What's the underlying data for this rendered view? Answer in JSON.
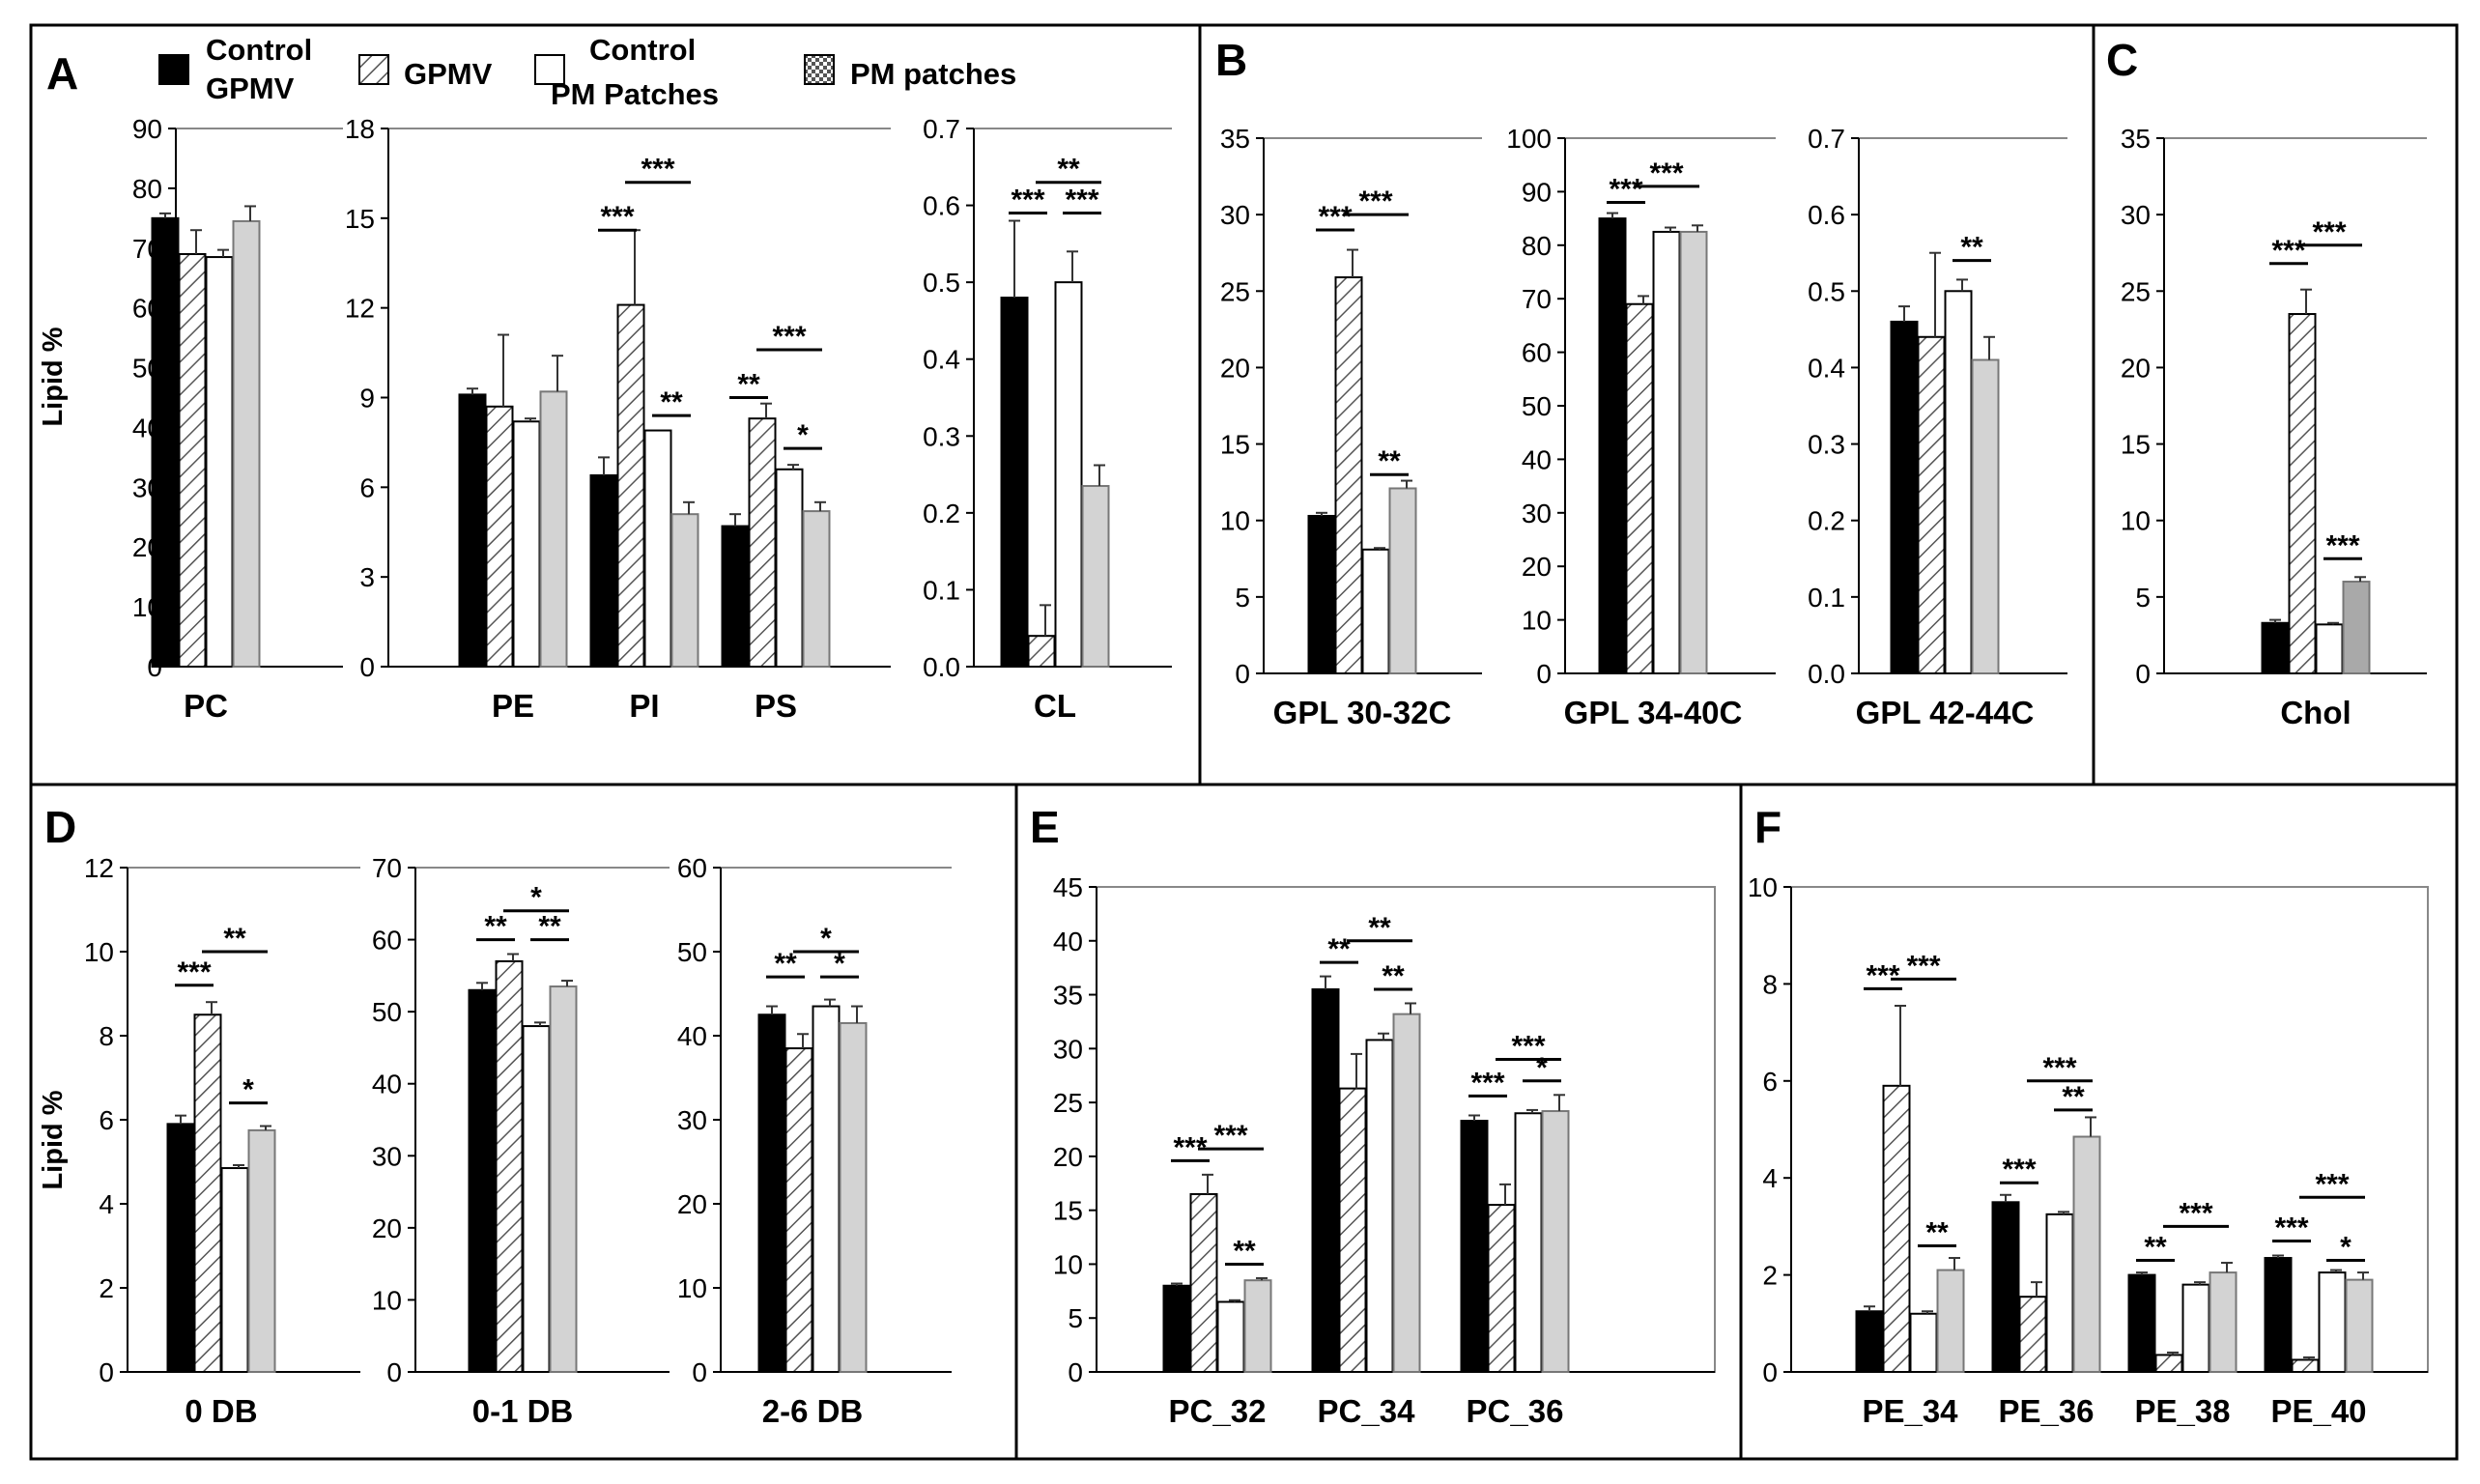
{
  "legend": {
    "control_gpmv": [
      "Control",
      "GPMV"
    ],
    "gpmv": "GPMV",
    "control_pm": [
      "Control",
      "PM Patches"
    ],
    "pm_patches": "PM patches"
  },
  "series_names": [
    "Control GPMV",
    "GPMV",
    "Control PM Patches",
    "PM patches"
  ],
  "panels": [
    {
      "label": "A"
    },
    {
      "label": "B"
    },
    {
      "label": "C"
    },
    {
      "label": "D"
    },
    {
      "label": "E"
    },
    {
      "label": "F"
    }
  ],
  "ylabel": "Lipid %",
  "chart_data": [
    {
      "type": "bar",
      "panel": "A",
      "title": "",
      "ylabel": "Lipid %",
      "ylim": [
        0,
        90
      ],
      "yticks": [
        0,
        10,
        20,
        30,
        40,
        50,
        60,
        70,
        80,
        90
      ],
      "categories": [
        "PC"
      ],
      "series": [
        {
          "name": "Control GPMV",
          "values": [
            75.0
          ],
          "errors": [
            0.8
          ]
        },
        {
          "name": "GPMV",
          "values": [
            69.0
          ],
          "errors": [
            4.0
          ]
        },
        {
          "name": "Control PM Patches",
          "values": [
            68.5
          ],
          "errors": [
            1.2
          ]
        },
        {
          "name": "PM patches",
          "values": [
            74.5
          ],
          "errors": [
            2.5
          ]
        }
      ],
      "annotations": []
    },
    {
      "type": "bar",
      "panel": "A",
      "ylim": [
        0,
        18
      ],
      "yticks": [
        0,
        3,
        6,
        9,
        12,
        15,
        18
      ],
      "categories": [
        "PE",
        "PI",
        "PS"
      ],
      "series": [
        {
          "name": "Control GPMV",
          "values": [
            9.1,
            6.4,
            4.7
          ],
          "errors": [
            0.2,
            0.6,
            0.4
          ]
        },
        {
          "name": "GPMV",
          "values": [
            8.7,
            12.1,
            8.3
          ],
          "errors": [
            2.4,
            2.5,
            0.5
          ]
        },
        {
          "name": "Control PM Patches",
          "values": [
            8.2,
            7.9,
            6.6
          ],
          "errors": [
            0.1,
            0,
            0.15
          ]
        },
        {
          "name": "PM patches",
          "values": [
            9.2,
            5.1,
            5.2
          ],
          "errors": [
            1.2,
            0.4,
            0.3
          ]
        }
      ],
      "annotations": [
        {
          "cat": 1,
          "from": 0,
          "to": 1,
          "text": "***",
          "level": 14.6
        },
        {
          "cat": 1,
          "from": 1,
          "to": 3,
          "text": "***",
          "level": 16.2
        },
        {
          "cat": 1,
          "from": 2,
          "to": 3,
          "text": "**",
          "level": 8.4
        },
        {
          "cat": 2,
          "from": 0,
          "to": 1,
          "text": "**",
          "level": 9.0
        },
        {
          "cat": 2,
          "from": 1,
          "to": 3,
          "text": "***",
          "level": 10.6
        },
        {
          "cat": 2,
          "from": 2,
          "to": 3,
          "text": "*",
          "level": 7.3
        }
      ]
    },
    {
      "type": "bar",
      "panel": "A",
      "ylim": [
        0,
        0.7
      ],
      "yticks": [
        0.0,
        0.1,
        0.2,
        0.3,
        0.4,
        0.5,
        0.6,
        0.7
      ],
      "categories": [
        "CL"
      ],
      "series": [
        {
          "name": "Control GPMV",
          "values": [
            0.48
          ],
          "errors": [
            0.1
          ]
        },
        {
          "name": "GPMV",
          "values": [
            0.04
          ],
          "errors": [
            0.04
          ]
        },
        {
          "name": "Control PM Patches",
          "values": [
            0.5
          ],
          "errors": [
            0.04
          ]
        },
        {
          "name": "PM patches",
          "values": [
            0.235
          ],
          "errors": [
            0.027
          ]
        }
      ],
      "annotations": [
        {
          "cat": 0,
          "from": 0,
          "to": 1,
          "text": "***",
          "level": 0.59
        },
        {
          "cat": 0,
          "from": 1,
          "to": 3,
          "text": "**",
          "level": 0.63
        },
        {
          "cat": 0,
          "from": 2,
          "to": 3,
          "text": "***",
          "level": 0.59
        }
      ]
    },
    {
      "type": "bar",
      "panel": "B",
      "ylim": [
        0,
        35
      ],
      "yticks": [
        0,
        5,
        10,
        15,
        20,
        25,
        30,
        35
      ],
      "categories": [
        "GPL 30-32C"
      ],
      "series": [
        {
          "name": "Control GPMV",
          "values": [
            10.3
          ],
          "errors": [
            0.2
          ]
        },
        {
          "name": "GPMV",
          "values": [
            25.9
          ],
          "errors": [
            1.8
          ]
        },
        {
          "name": "Control PM Patches",
          "values": [
            8.1
          ],
          "errors": [
            0.1
          ]
        },
        {
          "name": "PM patches",
          "values": [
            12.1
          ],
          "errors": [
            0.5
          ]
        }
      ],
      "annotations": [
        {
          "cat": 0,
          "from": 0,
          "to": 1,
          "text": "***",
          "level": 29.0
        },
        {
          "cat": 0,
          "from": 1,
          "to": 3,
          "text": "***",
          "level": 30.0
        },
        {
          "cat": 0,
          "from": 2,
          "to": 3,
          "text": "**",
          "level": 13.0
        }
      ]
    },
    {
      "type": "bar",
      "panel": "B",
      "ylim": [
        0,
        100
      ],
      "yticks": [
        0,
        10,
        20,
        30,
        40,
        50,
        60,
        70,
        80,
        90,
        100
      ],
      "categories": [
        "GPL 34-40C"
      ],
      "series": [
        {
          "name": "Control GPMV",
          "values": [
            85.0
          ],
          "errors": [
            1.0
          ]
        },
        {
          "name": "GPMV",
          "values": [
            69.0
          ],
          "errors": [
            1.5
          ]
        },
        {
          "name": "Control PM Patches",
          "values": [
            82.5
          ],
          "errors": [
            0.8
          ]
        },
        {
          "name": "PM patches",
          "values": [
            82.5
          ],
          "errors": [
            1.2
          ]
        }
      ],
      "annotations": [
        {
          "cat": 0,
          "from": 0,
          "to": 1,
          "text": "***",
          "level": 88.0
        },
        {
          "cat": 0,
          "from": 1,
          "to": 3,
          "text": "***",
          "level": 91.0
        }
      ]
    },
    {
      "type": "bar",
      "panel": "B",
      "ylim": [
        0,
        0.7
      ],
      "yticks": [
        0.0,
        0.1,
        0.2,
        0.3,
        0.4,
        0.5,
        0.6,
        0.7
      ],
      "categories": [
        "GPL 42-44C"
      ],
      "series": [
        {
          "name": "Control GPMV",
          "values": [
            0.46
          ],
          "errors": [
            0.02
          ]
        },
        {
          "name": "GPMV",
          "values": [
            0.44
          ],
          "errors": [
            0.11
          ]
        },
        {
          "name": "Control PM Patches",
          "values": [
            0.5
          ],
          "errors": [
            0.015
          ]
        },
        {
          "name": "PM patches",
          "values": [
            0.41
          ],
          "errors": [
            0.03
          ]
        }
      ],
      "annotations": [
        {
          "cat": 0,
          "from": 2,
          "to": 3,
          "text": "**",
          "level": 0.54
        }
      ]
    },
    {
      "type": "bar",
      "panel": "C",
      "ylim": [
        0,
        35
      ],
      "yticks": [
        0,
        5,
        10,
        15,
        20,
        25,
        30,
        35
      ],
      "categories": [
        "Chol"
      ],
      "series": [
        {
          "name": "Control GPMV",
          "values": [
            3.3
          ],
          "errors": [
            0.2
          ]
        },
        {
          "name": "GPMV",
          "values": [
            23.5
          ],
          "errors": [
            1.6
          ]
        },
        {
          "name": "Control PM Patches",
          "values": [
            3.2
          ],
          "errors": [
            0.1
          ]
        },
        {
          "name": "PM patches",
          "values": [
            6.0
          ],
          "errors": [
            0.3
          ]
        }
      ],
      "annotations": [
        {
          "cat": 0,
          "from": 0,
          "to": 1,
          "text": "***",
          "level": 26.8
        },
        {
          "cat": 0,
          "from": 1,
          "to": 3,
          "text": "***",
          "level": 28.0
        },
        {
          "cat": 0,
          "from": 2,
          "to": 3,
          "text": "***",
          "level": 7.5
        }
      ]
    },
    {
      "type": "bar",
      "panel": "D",
      "ylabel": "Lipid %",
      "ylim": [
        0,
        12
      ],
      "yticks": [
        0,
        2,
        4,
        6,
        8,
        10,
        12
      ],
      "categories": [
        "0 DB"
      ],
      "series": [
        {
          "name": "Control GPMV",
          "values": [
            5.9
          ],
          "errors": [
            0.2
          ]
        },
        {
          "name": "GPMV",
          "values": [
            8.5
          ],
          "errors": [
            0.3
          ]
        },
        {
          "name": "Control PM Patches",
          "values": [
            4.85
          ],
          "errors": [
            0.07
          ]
        },
        {
          "name": "PM patches",
          "values": [
            5.75
          ],
          "errors": [
            0.1
          ]
        }
      ],
      "annotations": [
        {
          "cat": 0,
          "from": 0,
          "to": 1,
          "text": "***",
          "level": 9.2
        },
        {
          "cat": 0,
          "from": 1,
          "to": 3,
          "text": "**",
          "level": 10.0
        },
        {
          "cat": 0,
          "from": 2,
          "to": 3,
          "text": "*",
          "level": 6.4
        }
      ]
    },
    {
      "type": "bar",
      "panel": "D",
      "ylim": [
        0,
        70
      ],
      "yticks": [
        0,
        10,
        20,
        30,
        40,
        50,
        60,
        70
      ],
      "categories": [
        "0-1 DB"
      ],
      "series": [
        {
          "name": "Control GPMV",
          "values": [
            53.0
          ],
          "errors": [
            1.0
          ]
        },
        {
          "name": "GPMV",
          "values": [
            57.0
          ],
          "errors": [
            1.0
          ]
        },
        {
          "name": "Control PM Patches",
          "values": [
            48.0
          ],
          "errors": [
            0.5
          ]
        },
        {
          "name": "PM patches",
          "values": [
            53.5
          ],
          "errors": [
            0.8
          ]
        }
      ],
      "annotations": [
        {
          "cat": 0,
          "from": 0,
          "to": 1,
          "text": "**",
          "level": 60.0
        },
        {
          "cat": 0,
          "from": 1,
          "to": 3,
          "text": "*",
          "level": 64.0
        },
        {
          "cat": 0,
          "from": 2,
          "to": 3,
          "text": "**",
          "level": 60.0
        }
      ]
    },
    {
      "type": "bar",
      "panel": "D",
      "ylim": [
        0,
        60
      ],
      "yticks": [
        0,
        10,
        20,
        30,
        40,
        50,
        60
      ],
      "categories": [
        "2-6 DB"
      ],
      "series": [
        {
          "name": "Control GPMV",
          "values": [
            42.5
          ],
          "errors": [
            1.0
          ]
        },
        {
          "name": "GPMV",
          "values": [
            38.5
          ],
          "errors": [
            1.7
          ]
        },
        {
          "name": "Control PM Patches",
          "values": [
            43.5
          ],
          "errors": [
            0.8
          ]
        },
        {
          "name": "PM patches",
          "values": [
            41.5
          ],
          "errors": [
            2.0
          ]
        }
      ],
      "annotations": [
        {
          "cat": 0,
          "from": 0,
          "to": 1,
          "text": "**",
          "level": 47.0
        },
        {
          "cat": 0,
          "from": 1,
          "to": 3,
          "text": "*",
          "level": 50.0
        },
        {
          "cat": 0,
          "from": 2,
          "to": 3,
          "text": "*",
          "level": 47.0
        }
      ]
    },
    {
      "type": "bar",
      "panel": "E",
      "ylim": [
        0,
        45
      ],
      "yticks": [
        0,
        5,
        10,
        15,
        20,
        25,
        30,
        35,
        40,
        45
      ],
      "categories": [
        "PC_32",
        "PC_34",
        "PC_36"
      ],
      "series": [
        {
          "name": "Control GPMV",
          "values": [
            8.0,
            35.5,
            23.3
          ],
          "errors": [
            0.2,
            1.2,
            0.5
          ]
        },
        {
          "name": "GPMV",
          "values": [
            16.5,
            26.3,
            15.5
          ],
          "errors": [
            1.8,
            3.2,
            1.9
          ]
        },
        {
          "name": "Control PM Patches",
          "values": [
            6.5,
            30.8,
            24.0
          ],
          "errors": [
            0.15,
            0.6,
            0.3
          ]
        },
        {
          "name": "PM patches",
          "values": [
            8.5,
            33.2,
            24.2
          ],
          "errors": [
            0.2,
            1.0,
            1.5
          ]
        }
      ],
      "annotations": [
        {
          "cat": 0,
          "from": 0,
          "to": 1,
          "text": "***",
          "level": 19.6
        },
        {
          "cat": 0,
          "from": 1,
          "to": 3,
          "text": "***",
          "level": 20.7
        },
        {
          "cat": 0,
          "from": 2,
          "to": 3,
          "text": "**",
          "level": 10.0
        },
        {
          "cat": 1,
          "from": 0,
          "to": 1,
          "text": "**",
          "level": 38.0
        },
        {
          "cat": 1,
          "from": 1,
          "to": 3,
          "text": "**",
          "level": 40.0
        },
        {
          "cat": 1,
          "from": 2,
          "to": 3,
          "text": "**",
          "level": 35.5
        },
        {
          "cat": 2,
          "from": 0,
          "to": 1,
          "text": "***",
          "level": 25.6
        },
        {
          "cat": 2,
          "from": 1,
          "to": 3,
          "text": "***",
          "level": 29.0
        },
        {
          "cat": 2,
          "from": 2,
          "to": 3,
          "text": "*",
          "level": 27.0
        }
      ]
    },
    {
      "type": "bar",
      "panel": "F",
      "ylim": [
        0,
        10
      ],
      "yticks": [
        0,
        2,
        4,
        6,
        8,
        10
      ],
      "categories": [
        "PE_34",
        "PE_36",
        "PE_38",
        "PE_40"
      ],
      "series": [
        {
          "name": "Control GPMV",
          "values": [
            1.25,
            3.5,
            2.0,
            2.35
          ],
          "errors": [
            0.1,
            0.15,
            0.05,
            0.05
          ]
        },
        {
          "name": "GPMV",
          "values": [
            5.9,
            1.55,
            0.35,
            0.25
          ],
          "errors": [
            1.65,
            0.3,
            0.05,
            0.05
          ]
        },
        {
          "name": "Control PM Patches",
          "values": [
            1.2,
            3.25,
            1.8,
            2.05
          ],
          "errors": [
            0.05,
            0.05,
            0.05,
            0.05
          ]
        },
        {
          "name": "PM patches",
          "values": [
            2.1,
            4.85,
            2.05,
            1.9
          ],
          "errors": [
            0.25,
            0.4,
            0.2,
            0.15
          ]
        }
      ],
      "annotations": [
        {
          "cat": 0,
          "from": 0,
          "to": 1,
          "text": "***",
          "level": 7.9
        },
        {
          "cat": 0,
          "from": 1,
          "to": 3,
          "text": "***",
          "level": 8.1
        },
        {
          "cat": 0,
          "from": 2,
          "to": 3,
          "text": "**",
          "level": 2.6
        },
        {
          "cat": 1,
          "from": 0,
          "to": 1,
          "text": "***",
          "level": 3.9
        },
        {
          "cat": 1,
          "from": 1,
          "to": 3,
          "text": "***",
          "level": 6.0
        },
        {
          "cat": 1,
          "from": 2,
          "to": 3,
          "text": "**",
          "level": 5.4
        },
        {
          "cat": 2,
          "from": 0,
          "to": 1,
          "text": "**",
          "level": 2.3
        },
        {
          "cat": 2,
          "from": 1,
          "to": 3,
          "text": "***",
          "level": 3.0
        },
        {
          "cat": 3,
          "from": 0,
          "to": 1,
          "text": "***",
          "level": 2.7
        },
        {
          "cat": 3,
          "from": 1,
          "to": 3,
          "text": "***",
          "level": 3.6
        },
        {
          "cat": 3,
          "from": 2,
          "to": 3,
          "text": "*",
          "level": 2.3
        }
      ]
    }
  ]
}
